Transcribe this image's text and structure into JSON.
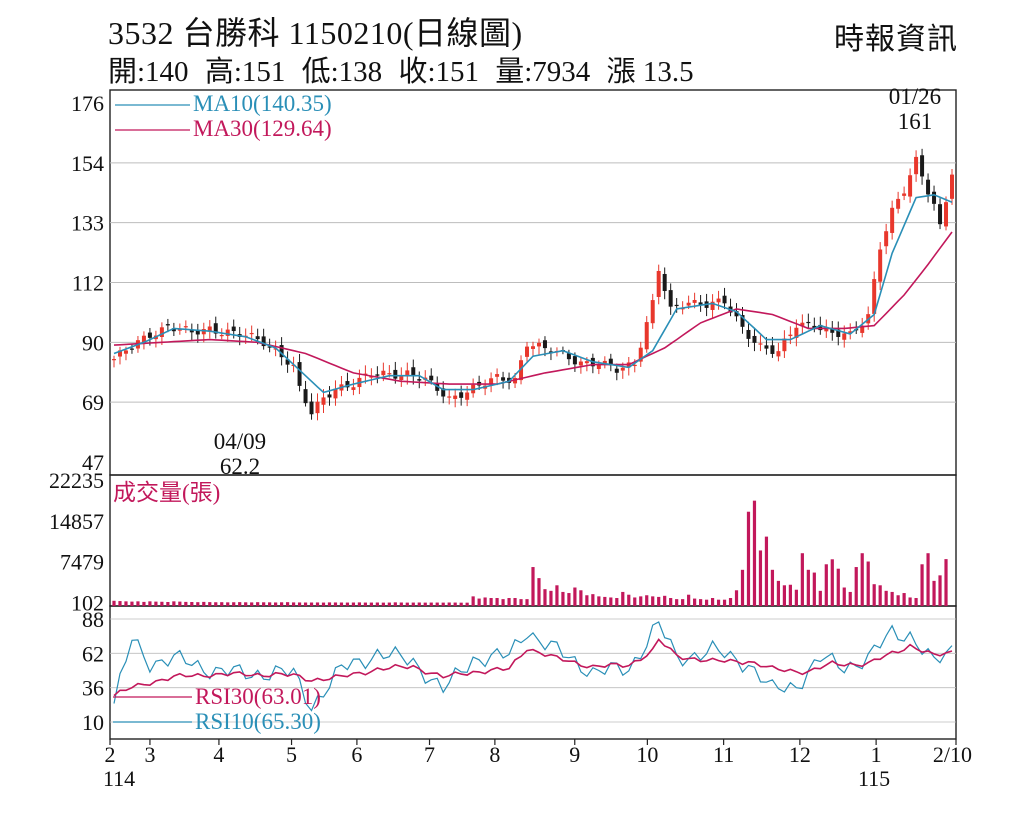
{
  "header": {
    "title": "3532 台勝科 1150210(日線圖)",
    "brand": "時報資訊",
    "stats": [
      {
        "label": "開",
        "value": "140"
      },
      {
        "label": "高",
        "value": "151"
      },
      {
        "label": "低",
        "value": "138"
      },
      {
        "label": "收",
        "value": "151"
      },
      {
        "label": "量",
        "value": "7934"
      },
      {
        "label": "漲",
        "value": "13.5"
      }
    ],
    "stats_text": [
      "開:140",
      "高:151",
      "低:138",
      "收:151",
      "量:7934",
      "漲 13.5"
    ]
  },
  "colors": {
    "up": "#e8372c",
    "down": "#1a1a1a",
    "ma10": "#2a8fb7",
    "ma30": "#c2185b",
    "volume": "#c2185b",
    "rsi30": "#c2185b",
    "rsi10": "#2a8fb7",
    "grid": "#bdbdbd"
  },
  "chart_data": [
    {
      "type": "candlestick",
      "title": "3532 台勝科 1150210(日線圖)",
      "ylim": [
        47,
        176
      ],
      "y_ticks": [
        "176",
        "154",
        "133",
        "112",
        "90",
        "69",
        "47"
      ],
      "x_ticks": [
        "2",
        "3",
        "4",
        "5",
        "6",
        "7",
        "8",
        "9",
        "10",
        "11",
        "12",
        "1",
        "2/10"
      ],
      "x_year_labels": [
        "114",
        "115"
      ],
      "annotations": [
        {
          "date": "01/26",
          "value": "161",
          "text": "01/26",
          "value_text": "161"
        },
        {
          "date": "04/09",
          "value": "62.2",
          "text": "04/09",
          "value_text": "62.2"
        }
      ],
      "legend": [
        {
          "name": "MA10",
          "value": "140.35",
          "label": "MA10(140.35)"
        },
        {
          "name": "MA30",
          "value": "129.64",
          "label": "MA30(129.64)"
        }
      ],
      "close_path": [
        {
          "x": 0,
          "y": 84
        },
        {
          "x": 3,
          "y": 88
        },
        {
          "x": 6,
          "y": 93
        },
        {
          "x": 9,
          "y": 96
        },
        {
          "x": 13,
          "y": 93
        },
        {
          "x": 16,
          "y": 95
        },
        {
          "x": 19,
          "y": 94
        },
        {
          "x": 22,
          "y": 92
        },
        {
          "x": 25,
          "y": 90
        },
        {
          "x": 28,
          "y": 86
        },
        {
          "x": 30,
          "y": 81
        },
        {
          "x": 31,
          "y": 73
        },
        {
          "x": 33,
          "y": 64
        },
        {
          "x": 35,
          "y": 70
        },
        {
          "x": 37,
          "y": 74
        },
        {
          "x": 40,
          "y": 75
        },
        {
          "x": 43,
          "y": 78
        },
        {
          "x": 46,
          "y": 79
        },
        {
          "x": 49,
          "y": 79
        },
        {
          "x": 52,
          "y": 76
        },
        {
          "x": 54,
          "y": 73
        },
        {
          "x": 56,
          "y": 70
        },
        {
          "x": 58,
          "y": 72
        },
        {
          "x": 61,
          "y": 74
        },
        {
          "x": 64,
          "y": 77
        },
        {
          "x": 67,
          "y": 77
        },
        {
          "x": 69,
          "y": 90
        },
        {
          "x": 72,
          "y": 87
        },
        {
          "x": 75,
          "y": 86
        },
        {
          "x": 78,
          "y": 83
        },
        {
          "x": 81,
          "y": 82
        },
        {
          "x": 84,
          "y": 80
        },
        {
          "x": 87,
          "y": 83
        },
        {
          "x": 90,
          "y": 104
        },
        {
          "x": 91,
          "y": 116
        },
        {
          "x": 93,
          "y": 101
        },
        {
          "x": 96,
          "y": 105
        },
        {
          "x": 99,
          "y": 104
        },
        {
          "x": 102,
          "y": 104
        },
        {
          "x": 105,
          "y": 95
        },
        {
          "x": 108,
          "y": 89
        },
        {
          "x": 111,
          "y": 86
        },
        {
          "x": 114,
          "y": 96
        },
        {
          "x": 117,
          "y": 97
        },
        {
          "x": 120,
          "y": 93
        },
        {
          "x": 123,
          "y": 92
        },
        {
          "x": 126,
          "y": 100
        },
        {
          "x": 128,
          "y": 125
        },
        {
          "x": 130,
          "y": 137
        },
        {
          "x": 132,
          "y": 144
        },
        {
          "x": 134,
          "y": 155
        },
        {
          "x": 135,
          "y": 150
        },
        {
          "x": 137,
          "y": 140
        },
        {
          "x": 138,
          "y": 132
        },
        {
          "x": 140,
          "y": 151
        }
      ],
      "ma10_path": [
        {
          "x": 0,
          "y": 86
        },
        {
          "x": 5,
          "y": 90
        },
        {
          "x": 10,
          "y": 95
        },
        {
          "x": 16,
          "y": 94
        },
        {
          "x": 22,
          "y": 92
        },
        {
          "x": 27,
          "y": 88
        },
        {
          "x": 31,
          "y": 80
        },
        {
          "x": 35,
          "y": 72
        },
        {
          "x": 40,
          "y": 75
        },
        {
          "x": 46,
          "y": 78
        },
        {
          "x": 51,
          "y": 78
        },
        {
          "x": 55,
          "y": 73
        },
        {
          "x": 60,
          "y": 73
        },
        {
          "x": 66,
          "y": 76
        },
        {
          "x": 70,
          "y": 85
        },
        {
          "x": 75,
          "y": 87
        },
        {
          "x": 80,
          "y": 83
        },
        {
          "x": 86,
          "y": 81
        },
        {
          "x": 90,
          "y": 87
        },
        {
          "x": 94,
          "y": 102
        },
        {
          "x": 100,
          "y": 104
        },
        {
          "x": 104,
          "y": 101
        },
        {
          "x": 109,
          "y": 91
        },
        {
          "x": 113,
          "y": 91
        },
        {
          "x": 118,
          "y": 96
        },
        {
          "x": 123,
          "y": 93
        },
        {
          "x": 127,
          "y": 100
        },
        {
          "x": 130,
          "y": 122
        },
        {
          "x": 134,
          "y": 142
        },
        {
          "x": 137,
          "y": 143
        },
        {
          "x": 140,
          "y": 140.35
        }
      ],
      "ma30_path": [
        {
          "x": 0,
          "y": 89
        },
        {
          "x": 8,
          "y": 90
        },
        {
          "x": 16,
          "y": 91
        },
        {
          "x": 24,
          "y": 90
        },
        {
          "x": 32,
          "y": 86
        },
        {
          "x": 40,
          "y": 79
        },
        {
          "x": 48,
          "y": 76
        },
        {
          "x": 56,
          "y": 75
        },
        {
          "x": 64,
          "y": 75
        },
        {
          "x": 72,
          "y": 79
        },
        {
          "x": 80,
          "y": 82
        },
        {
          "x": 86,
          "y": 82
        },
        {
          "x": 92,
          "y": 88
        },
        {
          "x": 98,
          "y": 97
        },
        {
          "x": 104,
          "y": 102
        },
        {
          "x": 110,
          "y": 100
        },
        {
          "x": 116,
          "y": 95
        },
        {
          "x": 122,
          "y": 95
        },
        {
          "x": 127,
          "y": 96
        },
        {
          "x": 132,
          "y": 107
        },
        {
          "x": 136,
          "y": 118
        },
        {
          "x": 140,
          "y": 129.64
        }
      ]
    },
    {
      "type": "bar",
      "title": "成交量(張)",
      "ylim": [
        0,
        22235
      ],
      "y_ticks": [
        "22235",
        "14857",
        "7479",
        "102"
      ],
      "values": [
        400,
        350,
        300,
        250,
        300,
        200,
        300,
        250,
        220,
        180,
        300,
        250,
        200,
        180,
        150,
        200,
        160,
        140,
        150,
        120,
        140,
        160,
        130,
        110,
        150,
        130,
        120,
        100,
        130,
        150,
        110,
        100,
        90,
        90,
        100,
        80,
        110,
        100,
        90,
        80,
        90,
        110,
        80,
        80,
        90,
        70,
        80,
        120,
        90,
        70,
        80,
        90,
        70,
        80,
        80,
        70,
        90,
        80,
        60,
        60,
        1200,
        800,
        1000,
        900,
        900,
        700,
        900,
        900,
        700,
        700,
        6500,
        4500,
        2500,
        2200,
        3200,
        2000,
        1800,
        2800,
        2300,
        1400,
        1600,
        1200,
        1100,
        1000,
        900,
        2000,
        1500,
        1000,
        1200,
        1400,
        1200,
        1100,
        1300,
        900,
        700,
        700,
        1500,
        800,
        700,
        600,
        900,
        600,
        600,
        900,
        2300,
        6000,
        16500,
        18500,
        9500,
        12000,
        6000,
        4000,
        3200,
        3300,
        2400,
        9000,
        6000,
        5500,
        2200,
        7000,
        7900,
        6200,
        2800,
        2000,
        6500,
        9000,
        7500,
        3400,
        3200,
        2200,
        2000,
        1400,
        1800,
        1000,
        900,
        7000,
        9000,
        4000,
        5000,
        7934
      ]
    },
    {
      "type": "line",
      "title": "RSI",
      "ylim": [
        10,
        88
      ],
      "y_ticks": [
        "88",
        "62",
        "36",
        "10"
      ],
      "legend": [
        {
          "name": "RSI30",
          "value": "63.01",
          "label": "RSI30(63.01)"
        },
        {
          "name": "RSI10",
          "value": "65.30",
          "label": "RSI10(65.30)"
        }
      ],
      "series": [
        {
          "name": "RSI30",
          "x": [
            0,
            3,
            6,
            10,
            16,
            22,
            27,
            30,
            33,
            38,
            44,
            50,
            55,
            60,
            66,
            69,
            74,
            80,
            86,
            90,
            91,
            94,
            100,
            106,
            110,
            116,
            120,
            126,
            130,
            133,
            137,
            140
          ],
          "values": [
            30,
            36,
            40,
            44,
            46,
            46,
            46,
            45,
            42,
            44,
            50,
            52,
            44,
            48,
            50,
            66,
            58,
            52,
            53,
            64,
            72,
            60,
            56,
            56,
            50,
            48,
            54,
            54,
            62,
            68,
            60,
            63.01
          ]
        },
        {
          "name": "RSI10",
          "x": [
            0,
            3,
            6,
            10,
            16,
            22,
            27,
            30,
            33,
            38,
            44,
            50,
            55,
            60,
            66,
            69,
            71,
            74,
            80,
            86,
            90,
            91,
            94,
            100,
            106,
            110,
            114,
            118,
            122,
            126,
            130,
            133,
            137,
            140
          ],
          "values": [
            24,
            72,
            55,
            58,
            50,
            46,
            48,
            46,
            22,
            50,
            62,
            56,
            34,
            58,
            60,
            80,
            72,
            64,
            48,
            50,
            78,
            84,
            58,
            64,
            54,
            34,
            38,
            58,
            52,
            58,
            78,
            76,
            54,
            65.3
          ]
        }
      ]
    }
  ]
}
